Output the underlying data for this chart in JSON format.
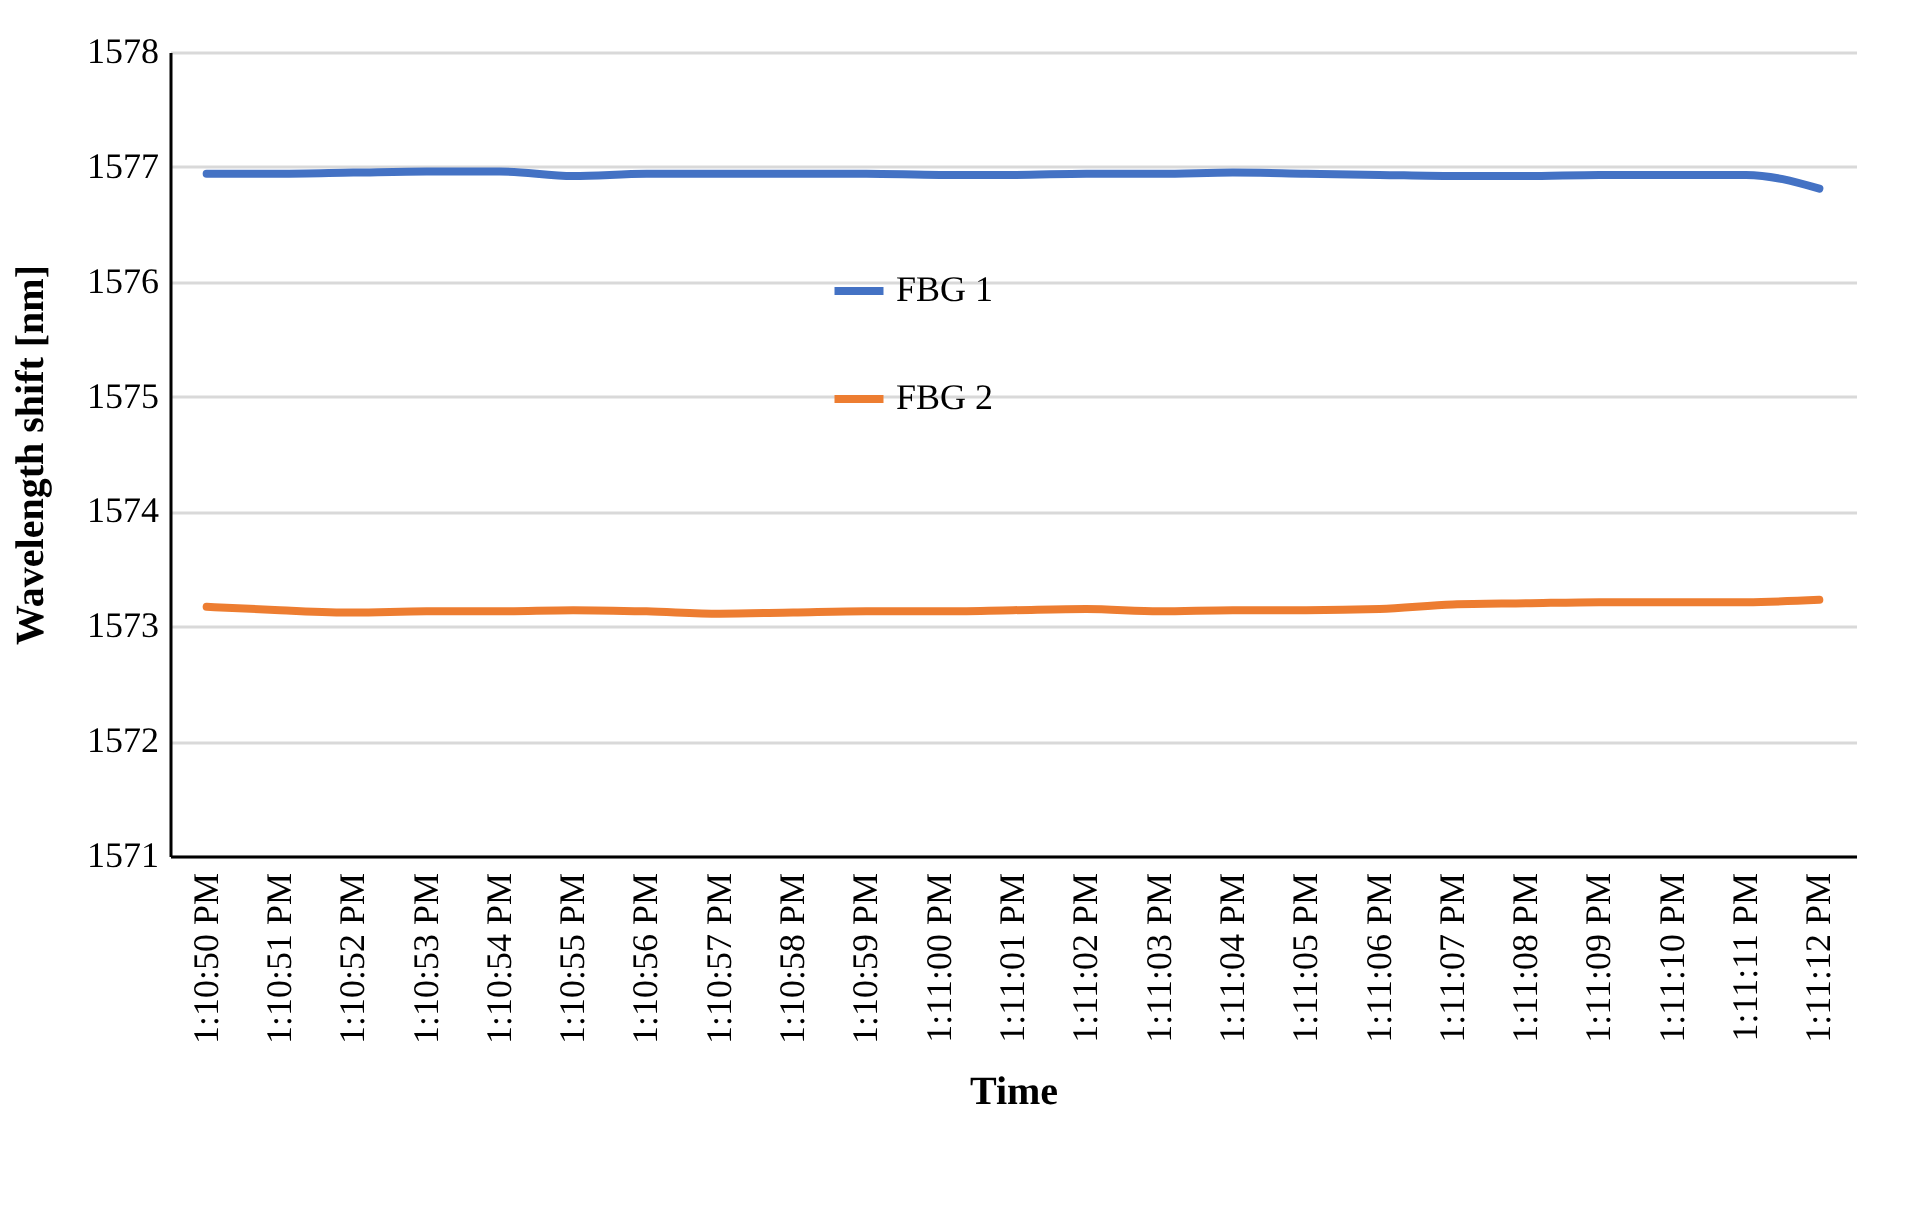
{
  "chart_data": {
    "type": "line",
    "xlabel": "Time",
    "ylabel": "Wavelength  shift [nm]",
    "categories": [
      "1:10:50 PM",
      "1:10:51 PM",
      "1:10:52 PM",
      "1:10:53 PM",
      "1:10:54 PM",
      "1:10:55 PM",
      "1:10:56 PM",
      "1:10:57 PM",
      "1:10:58 PM",
      "1:10:59 PM",
      "1:11:00 PM",
      "1:11:01 PM",
      "1:11:02 PM",
      "1:11:03 PM",
      "1:11:04 PM",
      "1:11:05 PM",
      "1:11:06 PM",
      "1:11:07 PM",
      "1:11:08 PM",
      "1:11:09 PM",
      "1:11:10 PM",
      "1:11:11 PM",
      "1:11:12 PM"
    ],
    "series": [
      {
        "name": "FBG 1",
        "color": "#4472c4",
        "values": [
          1576.94,
          1576.94,
          1576.95,
          1576.96,
          1576.96,
          1576.92,
          1576.94,
          1576.94,
          1576.94,
          1576.94,
          1576.93,
          1576.93,
          1576.94,
          1576.94,
          1576.95,
          1576.94,
          1576.93,
          1576.92,
          1576.92,
          1576.93,
          1576.93,
          1576.93,
          1576.81
        ]
      },
      {
        "name": "FBG 2",
        "color": "#ed7d31",
        "values": [
          1573.17,
          1573.14,
          1573.12,
          1573.13,
          1573.13,
          1573.14,
          1573.13,
          1573.11,
          1573.12,
          1573.13,
          1573.13,
          1573.14,
          1573.15,
          1573.13,
          1573.14,
          1573.14,
          1573.15,
          1573.19,
          1573.2,
          1573.21,
          1573.21,
          1573.21,
          1573.23
        ]
      }
    ],
    "ylim": [
      1571,
      1578
    ],
    "yticks": [
      1571,
      1572,
      1573,
      1574,
      1575,
      1576,
      1577,
      1578
    ],
    "grid": "y",
    "legend": "top",
    "marker": "none",
    "line_style": "solid"
  }
}
